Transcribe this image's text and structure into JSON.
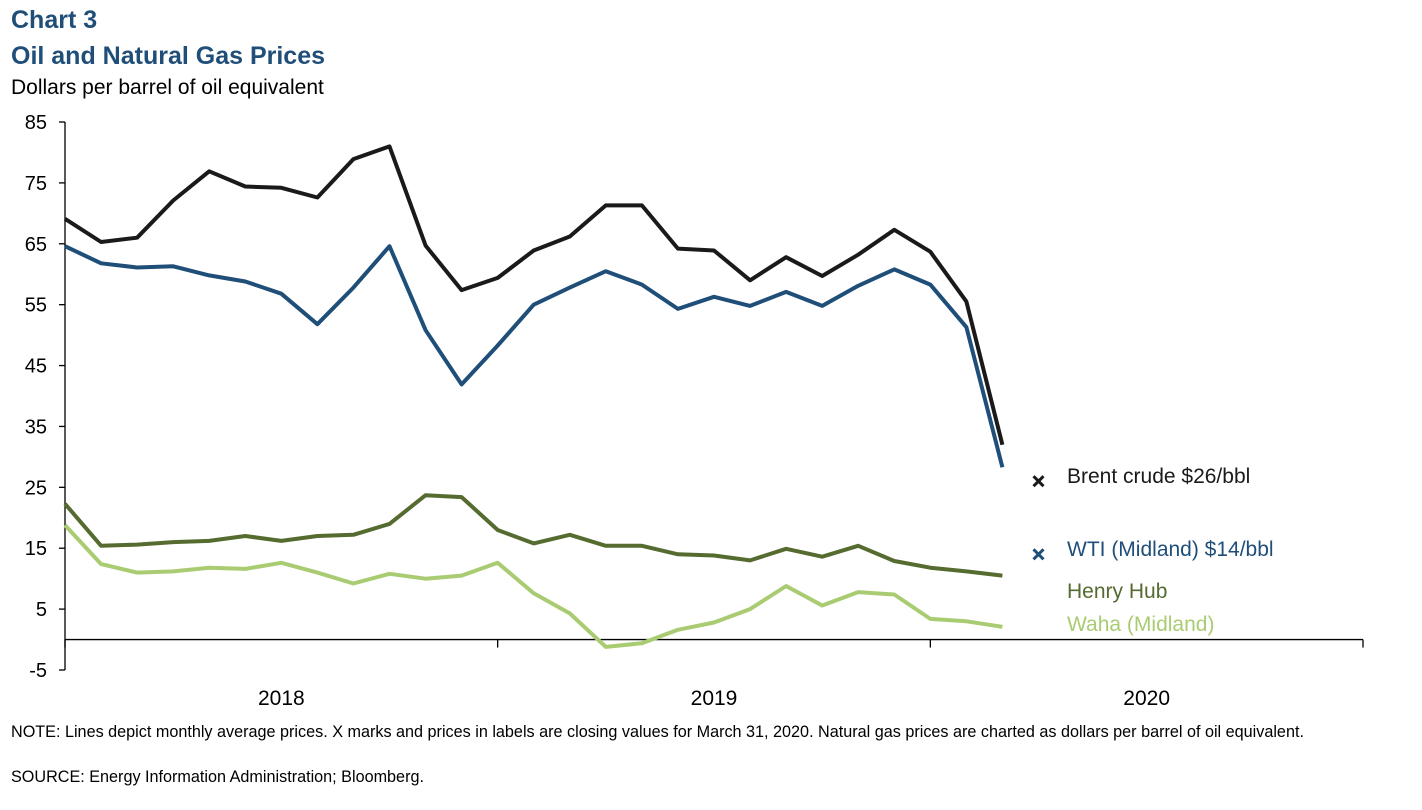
{
  "header": {
    "chart_label": "Chart 3",
    "title": "Oil and Natural Gas Prices",
    "unit_label": "Dollars per barrel of oil equivalent"
  },
  "colors": {
    "title": "#1f4e79",
    "brent": "#1a1a1a",
    "wti": "#1f4e79",
    "henry_hub": "#556b2f",
    "waha": "#a9cc73"
  },
  "chart_data": {
    "type": "line",
    "title": "Oil and Natural Gas Prices",
    "ylabel": "Dollars per barrel of oil equivalent",
    "xlabel": "",
    "ylim": [
      -5,
      85
    ],
    "yticks": [
      -5,
      5,
      15,
      25,
      35,
      45,
      55,
      65,
      75,
      85
    ],
    "ytick_labels": [
      "-5",
      "5",
      "15",
      "25",
      "35",
      "45",
      "55",
      "65",
      "75",
      "85"
    ],
    "xlim": [
      0,
      36
    ],
    "year_labels": [
      {
        "label": "2018",
        "center": 6
      },
      {
        "label": "2019",
        "center": 18
      },
      {
        "label": "2020",
        "center": 30
      }
    ],
    "year_ticks": [
      0,
      12,
      24,
      36
    ],
    "grid": false,
    "series": [
      {
        "name": "Brent crude",
        "color_key": "brent",
        "x": [
          0,
          1,
          2,
          3,
          4,
          5,
          6,
          7,
          8,
          9,
          10,
          11,
          12,
          13,
          14,
          15,
          16,
          17,
          18,
          19,
          20,
          21,
          22,
          23,
          24,
          25,
          26
        ],
        "values": [
          69.1,
          65.3,
          66.0,
          72.1,
          76.9,
          74.4,
          74.2,
          72.6,
          78.9,
          81.0,
          64.7,
          57.4,
          59.4,
          63.9,
          66.2,
          71.3,
          71.3,
          64.2,
          63.9,
          59.0,
          62.8,
          59.7,
          63.2,
          67.3,
          63.7,
          55.5,
          32.0
        ],
        "closing_value": 26,
        "label": "Brent crude $26/bbl"
      },
      {
        "name": "WTI (Midland)",
        "color_key": "wti",
        "x": [
          0,
          1,
          2,
          3,
          4,
          5,
          6,
          7,
          8,
          9,
          10,
          11,
          12,
          13,
          14,
          15,
          16,
          17,
          18,
          19,
          20,
          21,
          22,
          23,
          24,
          25,
          26
        ],
        "values": [
          64.6,
          61.8,
          61.1,
          61.3,
          59.8,
          58.8,
          56.8,
          51.8,
          57.8,
          64.6,
          50.8,
          41.9,
          48.3,
          55.0,
          57.8,
          60.5,
          58.3,
          54.3,
          56.3,
          54.8,
          57.1,
          54.8,
          58.1,
          60.8,
          58.3,
          51.3,
          28.3
        ],
        "closing_value": 14,
        "label": "WTI (Midland) $14/bbl"
      },
      {
        "name": "Henry Hub",
        "color_key": "henry_hub",
        "x": [
          0,
          1,
          2,
          3,
          4,
          5,
          6,
          7,
          8,
          9,
          10,
          11,
          12,
          13,
          14,
          15,
          16,
          17,
          18,
          19,
          20,
          21,
          22,
          23,
          24,
          25,
          26
        ],
        "values": [
          22.3,
          15.4,
          15.6,
          16.0,
          16.2,
          17.0,
          16.2,
          17.0,
          17.2,
          19.0,
          23.7,
          23.4,
          18.0,
          15.8,
          17.2,
          15.4,
          15.4,
          14.0,
          13.8,
          13.0,
          14.9,
          13.6,
          15.4,
          12.9,
          11.8,
          11.2,
          10.5
        ],
        "label": "Henry Hub"
      },
      {
        "name": "Waha (Midland)",
        "color_key": "waha",
        "x": [
          0,
          1,
          2,
          3,
          4,
          5,
          6,
          7,
          8,
          9,
          10,
          11,
          12,
          13,
          14,
          15,
          16,
          17,
          18,
          19,
          20,
          21,
          22,
          23,
          24,
          25,
          26
        ],
        "values": [
          18.8,
          12.4,
          11.0,
          11.2,
          11.8,
          11.6,
          12.6,
          11.0,
          9.2,
          10.8,
          10.0,
          10.5,
          12.6,
          7.6,
          4.3,
          -1.2,
          -0.6,
          1.6,
          2.8,
          5.0,
          8.8,
          5.6,
          7.8,
          7.4,
          3.4,
          3.0,
          2.1
        ],
        "label": "Waha (Midland)"
      }
    ],
    "closing_markers": [
      {
        "series": "Brent crude",
        "x": 27,
        "value": 26
      },
      {
        "series": "WTI (Midland)",
        "x": 27,
        "value": 14
      }
    ]
  },
  "footer": {
    "note": "NOTE: Lines depict monthly average prices. X marks and prices in labels are closing values for March 31, 2020. Natural gas prices are charted as dollars per barrel of oil equivalent.",
    "source": "SOURCE: Energy Information Administration; Bloomberg."
  }
}
